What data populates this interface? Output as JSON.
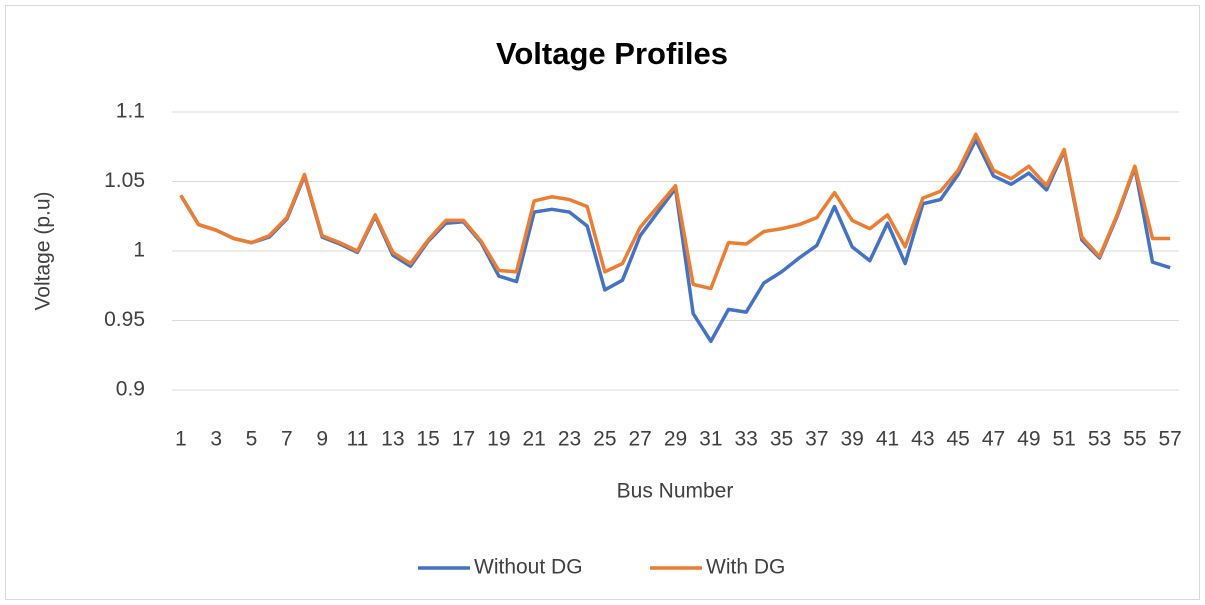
{
  "chart_data": {
    "type": "line",
    "title": "Voltage Profiles",
    "x_label": "Bus Number",
    "y_label": "Voltage (p.u)",
    "categories": [
      "1",
      null,
      "3",
      null,
      "5",
      null,
      "7",
      null,
      "9",
      null,
      "11",
      null,
      "13",
      null,
      "15",
      null,
      "17",
      null,
      "19",
      null,
      "21",
      null,
      "23",
      null,
      "25",
      null,
      "27",
      null,
      "29",
      null,
      "31",
      null,
      "33",
      null,
      "35",
      null,
      "37",
      null,
      "39",
      null,
      "41",
      null,
      "43",
      null,
      "45",
      null,
      "47",
      null,
      "49",
      null,
      "51",
      null,
      "53",
      null,
      "55",
      null,
      "57"
    ],
    "series": [
      {
        "name": "Without DG",
        "color": "#4472c4",
        "values": [
          1.04,
          1.019,
          1.015,
          1.009,
          1.006,
          1.01,
          1.023,
          1.054,
          1.01,
          1.005,
          0.999,
          1.025,
          0.997,
          0.989,
          1.007,
          1.02,
          1.021,
          1.006,
          0.982,
          0.978,
          1.028,
          1.03,
          1.028,
          1.018,
          0.972,
          0.979,
          1.011,
          1.028,
          1.045,
          0.955,
          0.935,
          0.958,
          0.956,
          0.977,
          0.985,
          0.995,
          1.004,
          1.032,
          1.003,
          0.993,
          1.02,
          0.991,
          1.034,
          1.037,
          1.055,
          1.08,
          1.054,
          1.048,
          1.056,
          1.044,
          1.072,
          1.008,
          0.995,
          1.025,
          1.06,
          0.992,
          0.988
        ]
      },
      {
        "name": "With DG",
        "color": "#ed7d31",
        "values": [
          1.04,
          1.019,
          1.015,
          1.009,
          1.006,
          1.011,
          1.024,
          1.055,
          1.011,
          1.006,
          1.0,
          1.026,
          0.999,
          0.991,
          1.008,
          1.022,
          1.022,
          1.007,
          0.986,
          0.985,
          1.036,
          1.039,
          1.037,
          1.032,
          0.985,
          0.991,
          1.017,
          1.032,
          1.047,
          0.976,
          0.973,
          1.006,
          1.005,
          1.014,
          1.016,
          1.019,
          1.024,
          1.042,
          1.022,
          1.016,
          1.026,
          1.003,
          1.038,
          1.043,
          1.058,
          1.084,
          1.058,
          1.052,
          1.061,
          1.047,
          1.073,
          1.01,
          0.996,
          1.026,
          1.061,
          1.009,
          1.009
        ]
      }
    ],
    "ylim": [
      0.9,
      1.1
    ],
    "yticks": [
      0.9,
      0.95,
      1,
      1.05,
      1.1
    ],
    "grid": true,
    "legend": "bottom"
  }
}
